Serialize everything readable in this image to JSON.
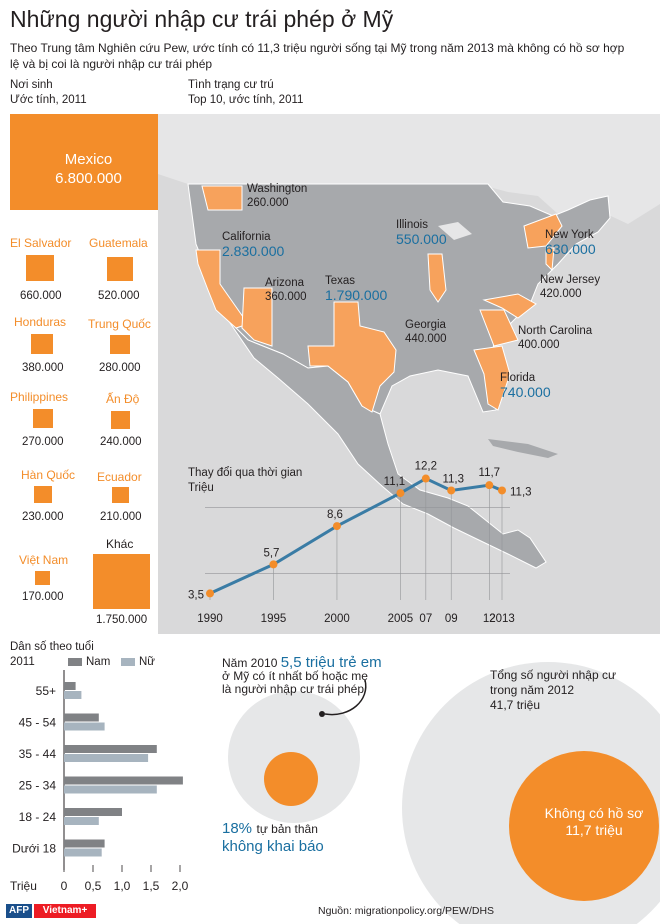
{
  "title": "Những người nhập cư trái phép ở Mỹ",
  "intro": "Theo Trung tâm Nghiên cứu Pew, ước tính có 11,3 triệu người sống tại Mỹ trong năm 2013 mà không có hồ sơ hợp lệ và bị coi là người nhập cư trái phép",
  "birthplace": {
    "heading": "Nơi sinh",
    "subheading": "Ước tính, 2011",
    "items": [
      {
        "name": "Mexico",
        "value": "6.800.000"
      },
      {
        "name": "El Salvador",
        "value": "660.000"
      },
      {
        "name": "Guatemala",
        "value": "520.000"
      },
      {
        "name": "Honduras",
        "value": "380.000"
      },
      {
        "name": "Trung Quốc",
        "value": "280.000"
      },
      {
        "name": "Philippines",
        "value": "270.000"
      },
      {
        "name": "Ấn Độ",
        "value": "240.000"
      },
      {
        "name": "Hàn Quốc",
        "value": "230.000"
      },
      {
        "name": "Ecuador",
        "value": "210.000"
      },
      {
        "name": "Việt Nam",
        "value": "170.000"
      },
      {
        "name": "Khác",
        "value": "1.750.000"
      }
    ]
  },
  "residence": {
    "heading": "Tình trạng cư trú",
    "subheading": "Top 10, ước tính, 2011",
    "states": [
      {
        "name": "Washington",
        "value": "260.000"
      },
      {
        "name": "California",
        "value": "2.830.000"
      },
      {
        "name": "Illinois",
        "value": "550.000"
      },
      {
        "name": "New York",
        "value": "630.000"
      },
      {
        "name": "New Jersey",
        "value": "420.000"
      },
      {
        "name": "Arizona",
        "value": "360.000"
      },
      {
        "name": "Texas",
        "value": "1.790.000"
      },
      {
        "name": "Georgia",
        "value": "440.000"
      },
      {
        "name": "North Carolina",
        "value": "400.000"
      },
      {
        "name": "Florida",
        "value": "740.000"
      }
    ]
  },
  "chart_data": [
    {
      "type": "line",
      "title": "Thay đổi qua thời gian",
      "ylabel": "Triệu",
      "x": [
        1990,
        1995,
        2000,
        2005,
        2007,
        2009,
        2012,
        2013
      ],
      "x_tick_labels": [
        "1990",
        "1995",
        "2000",
        "2005",
        "07",
        "09",
        "12",
        "2013"
      ],
      "values": [
        3.5,
        5.7,
        8.6,
        11.1,
        12.2,
        11.3,
        11.7,
        11.3
      ],
      "value_labels": [
        "3,5",
        "5,7",
        "8,6",
        "11,1",
        "12,2",
        "11,3",
        "11,7",
        "11,3"
      ],
      "xlim": [
        1990,
        2013
      ],
      "ylim": [
        3,
        13
      ]
    },
    {
      "type": "bar",
      "orientation": "horizontal",
      "title": "Dân số theo tuổi",
      "subtitle": "2011",
      "xlabel": "Triệu",
      "categories": [
        "55+",
        "45 - 54",
        "35 - 44",
        "25 - 34",
        "18 - 24",
        "Dưới 18"
      ],
      "series": [
        {
          "name": "Nam",
          "values": [
            0.2,
            0.6,
            1.6,
            2.05,
            1.0,
            0.7
          ]
        },
        {
          "name": "Nữ",
          "values": [
            0.3,
            0.7,
            1.45,
            1.6,
            0.6,
            0.65
          ]
        }
      ],
      "xticks": [
        "0",
        "0,5",
        "1,0",
        "1,5",
        "2,0"
      ],
      "xlim": [
        0,
        2.0
      ],
      "colors": {
        "Nam": "#808285",
        "Nữ": "#a7b4bf"
      }
    }
  ],
  "children": {
    "line1": "Năm 2010",
    "highlight": "5,5 triệu trẻ em",
    "line2": "ở Mỹ có ít nhất bố hoặc mẹ",
    "line3": "là người nhập cư trái phép",
    "pct": "18%",
    "pct_text": "tự bản thân",
    "pct_text2": "không khai báo"
  },
  "total": {
    "line1": "Tổng số người nhập cư",
    "line2": "trong năm 2012",
    "line3": "41,7 triệu",
    "inner1": "Không có hồ sơ",
    "inner2": "11,7 triệu"
  },
  "footer": {
    "logo1": "AFP",
    "logo2": "Vietnam+",
    "source": "Nguồn: migrationpolicy.org/PEW/DHS"
  },
  "colors": {
    "accent": "#f38d2a",
    "blue": "#1a6fa0",
    "grey": "#d1d3d4"
  }
}
